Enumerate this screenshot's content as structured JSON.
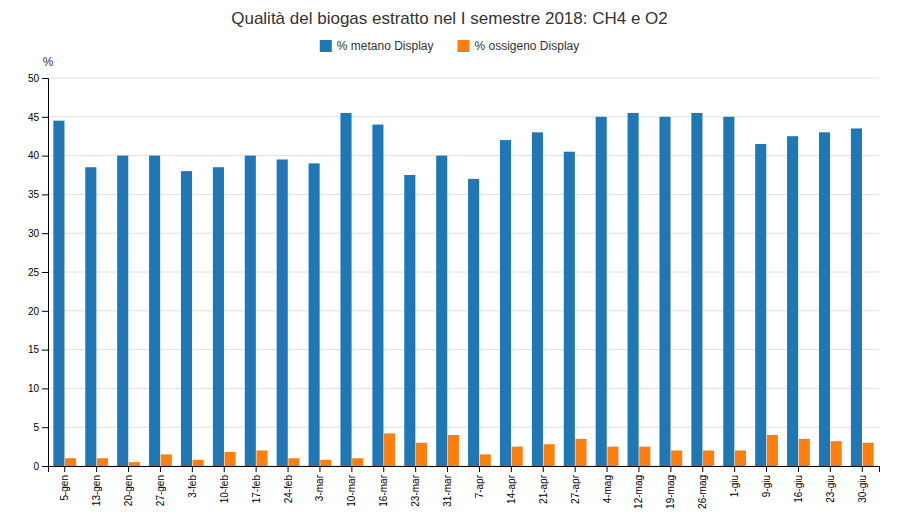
{
  "chart_data": {
    "type": "bar",
    "title": "Qualità del biogas estratto nel I semestre 2018: CH4 e O2",
    "ylabel": "%",
    "categories": [
      "5-gen",
      "13-gen",
      "20-gen",
      "27-gen",
      "3-feb",
      "10-feb",
      "17-feb",
      "24-feb",
      "3-mar",
      "10-mar",
      "16-mar",
      "23-mar",
      "31-mar",
      "7-apr",
      "14-apr",
      "21-apr",
      "27-apr",
      "4-mag",
      "12-mag",
      "19-mag",
      "26-mag",
      "1-giu",
      "9-giu",
      "16-giu",
      "23-giu",
      "30-giu"
    ],
    "series": [
      {
        "name": "% metano Display",
        "values": [
          44.5,
          38.5,
          40.0,
          40.0,
          38.0,
          38.5,
          40.0,
          39.5,
          39.0,
          45.5,
          44.0,
          37.5,
          40.0,
          37.0,
          42.0,
          43.0,
          40.5,
          45.0,
          45.5,
          45.0,
          45.5,
          45.0,
          41.5,
          42.5,
          43.0,
          43.5
        ]
      },
      {
        "name": "% ossigeno Display",
        "values": [
          1.0,
          1.0,
          0.5,
          1.5,
          0.8,
          1.8,
          2.0,
          1.0,
          0.8,
          1.0,
          4.2,
          3.0,
          4.0,
          1.5,
          2.5,
          2.8,
          3.5,
          2.5,
          2.5,
          2.0,
          2.0,
          2.0,
          4.0,
          3.5,
          3.2,
          3.0
        ]
      }
    ],
    "ylim": [
      0,
      50
    ],
    "yticks": [
      0,
      5,
      10,
      15,
      20,
      25,
      30,
      35,
      40,
      45,
      50
    ],
    "grid": true,
    "legend": "top"
  }
}
